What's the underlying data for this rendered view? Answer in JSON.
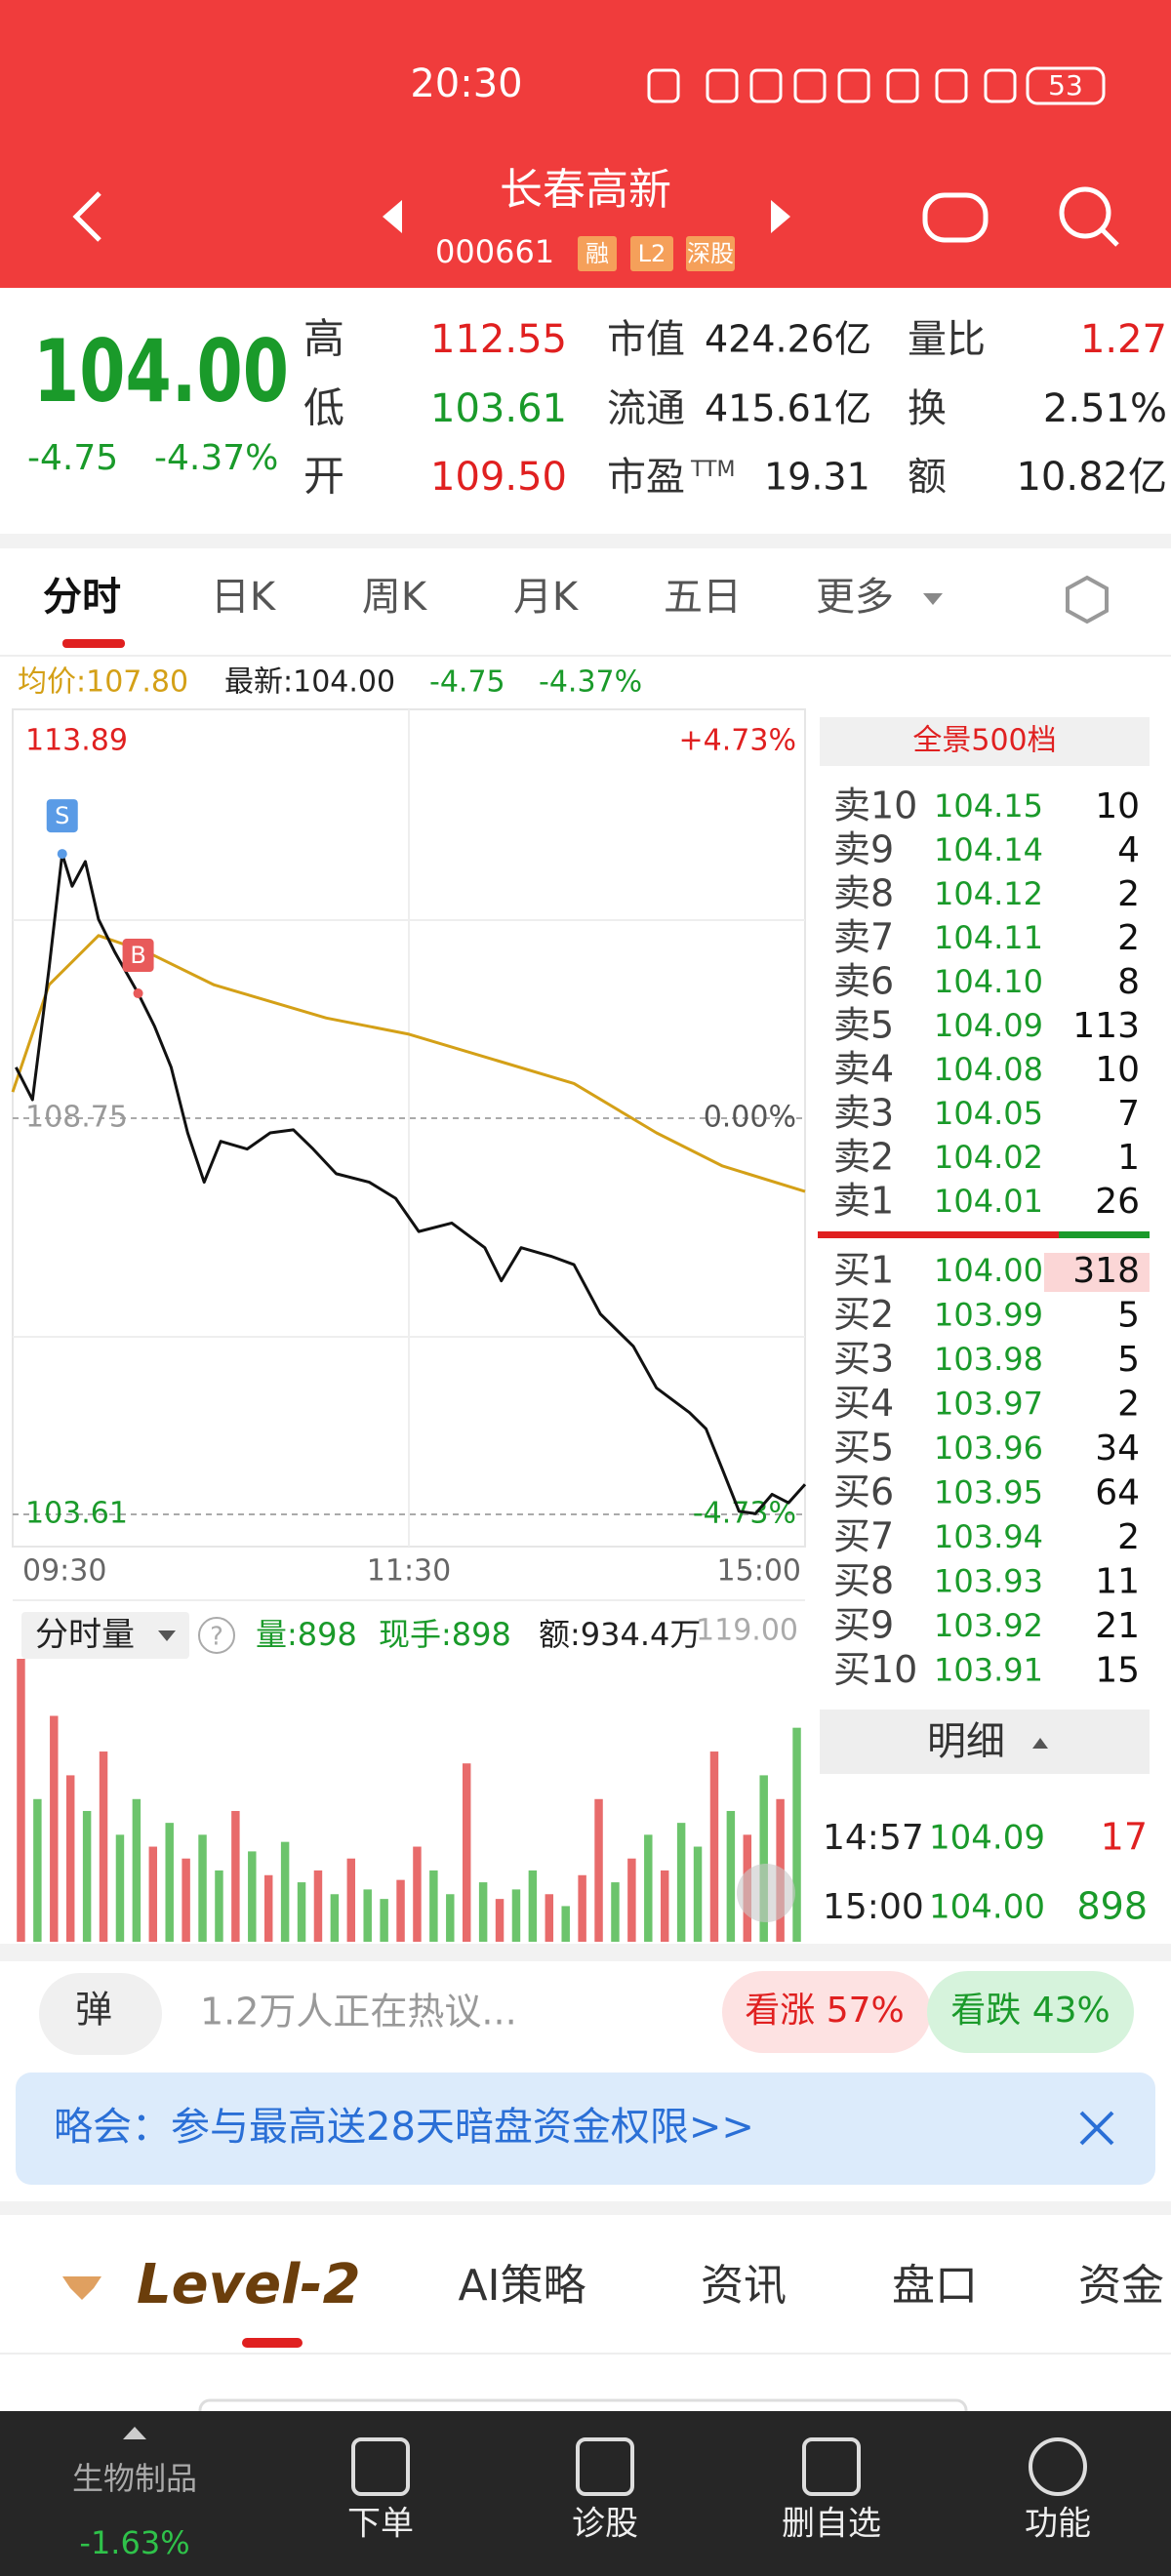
{
  "status_bar": {
    "time": "20:30",
    "battery": "53"
  },
  "header": {
    "title": "长春高新",
    "code": "000661",
    "tags": [
      "融",
      "L2",
      "深股"
    ]
  },
  "quote": {
    "price": "104.00",
    "change": "-4.75",
    "change_pct": "-4.37%",
    "pe_suffix": "TTM",
    "stats": [
      [
        "高",
        "112.55",
        "市值",
        "424.26亿",
        "量比",
        "1.27"
      ],
      [
        "低",
        "103.61",
        "流通",
        "415.61亿",
        "换",
        "2.51%"
      ],
      [
        "开",
        "109.50",
        "市盈",
        "19.31",
        "额",
        "10.82亿"
      ]
    ]
  },
  "tabs": [
    "分时",
    "日K",
    "周K",
    "月K",
    "五日",
    "更多"
  ],
  "info_bar": {
    "avg": "均价:107.80",
    "latest": "最新:104.00",
    "change": "-4.75",
    "change_pct": "-4.37%"
  },
  "intraday_chart": {
    "xlim": [
      0,
      240
    ],
    "xticks": [
      {
        "value": 0,
        "label": "09:30"
      },
      {
        "value": 120,
        "label": "11:30"
      },
      {
        "value": 240,
        "label": "15:00"
      }
    ],
    "ylim": [
      103.61,
      113.89
    ],
    "yticks": [
      113.89,
      108.75,
      103.61
    ],
    "y2lim": [
      -4.73,
      4.73
    ],
    "y2ticks": [
      {
        "value": 4.73,
        "label": "+4.73%"
      },
      {
        "value": 0,
        "label": "0.00%"
      },
      {
        "value": -4.73,
        "label": "-4.73%"
      }
    ],
    "price": {
      "x": [
        1,
        6,
        11,
        15,
        18,
        22,
        26,
        31,
        38,
        43,
        48,
        53,
        58,
        63,
        71,
        78,
        85,
        91,
        98,
        108,
        116,
        123,
        133,
        143,
        148,
        154,
        163,
        170,
        178,
        188,
        195,
        205,
        210,
        215,
        220,
        225,
        230,
        235,
        240
      ],
      "values": [
        109.41,
        108.99,
        110.69,
        112.18,
        111.76,
        112.08,
        111.33,
        110.9,
        110.37,
        109.94,
        109.41,
        108.56,
        107.92,
        108.45,
        108.35,
        108.56,
        108.6,
        108.35,
        108.03,
        107.92,
        107.71,
        107.28,
        107.39,
        107.07,
        106.64,
        107.07,
        106.96,
        106.85,
        106.21,
        105.79,
        105.25,
        104.93,
        104.72,
        104.19,
        103.65,
        103.62,
        103.87,
        103.76,
        104.0
      ]
    },
    "avg": {
      "x": [
        0,
        11,
        26,
        41,
        61,
        95,
        120,
        145,
        170,
        195,
        215,
        240
      ],
      "values": [
        109.09,
        110.48,
        111.12,
        110.9,
        110.48,
        110.05,
        109.84,
        109.52,
        109.2,
        108.56,
        108.13,
        107.8
      ]
    },
    "markers": [
      {
        "label": "S",
        "x": 15,
        "value": 112.18
      },
      {
        "label": "B",
        "x": 38,
        "value": 110.37
      }
    ]
  },
  "volume_panel": {
    "selector": "分时量",
    "help": "?",
    "volume": "量:898",
    "current": "现手:898",
    "amount": "额:934.4万",
    "ylim": [
      0,
      119
    ],
    "yticks": [
      {
        "value": 119,
        "label": "119.00"
      }
    ],
    "values": [
      119,
      60,
      95,
      70,
      55,
      80,
      45,
      60,
      40,
      50,
      35,
      45,
      30,
      55,
      38,
      28,
      42,
      25,
      30,
      20,
      35,
      22,
      18,
      26,
      40,
      30,
      20,
      75,
      25,
      18,
      22,
      30,
      20,
      15,
      28,
      60,
      25,
      35,
      45,
      30,
      50,
      40,
      80,
      55,
      45,
      70,
      60,
      90
    ],
    "up": [
      1,
      0,
      1,
      1,
      0,
      1,
      0,
      0,
      1,
      0,
      1,
      0,
      0,
      1,
      0,
      1,
      0,
      0,
      1,
      0,
      1,
      0,
      0,
      1,
      1,
      0,
      0,
      1,
      0,
      1,
      0,
      0,
      1,
      0,
      1,
      1,
      0,
      1,
      0,
      1,
      0,
      0,
      1,
      0,
      1,
      0,
      1,
      0
    ]
  },
  "order_book": {
    "title": "全景500档",
    "asks": [
      [
        "卖10",
        "104.15",
        "10"
      ],
      [
        "卖9",
        "104.14",
        "4"
      ],
      [
        "卖8",
        "104.12",
        "2"
      ],
      [
        "卖7",
        "104.11",
        "2"
      ],
      [
        "卖6",
        "104.10",
        "8"
      ],
      [
        "卖5",
        "104.09",
        "113"
      ],
      [
        "卖4",
        "104.08",
        "10"
      ],
      [
        "卖3",
        "104.05",
        "7"
      ],
      [
        "卖2",
        "104.02",
        "1"
      ],
      [
        "卖1",
        "104.01",
        "26"
      ]
    ],
    "bids": [
      [
        "买1",
        "104.00",
        "318"
      ],
      [
        "买2",
        "103.99",
        "5"
      ],
      [
        "买3",
        "103.98",
        "5"
      ],
      [
        "买4",
        "103.97",
        "2"
      ],
      [
        "买5",
        "103.96",
        "34"
      ],
      [
        "买6",
        "103.95",
        "64"
      ],
      [
        "买7",
        "103.94",
        "2"
      ],
      [
        "买8",
        "103.93",
        "11"
      ],
      [
        "买9",
        "103.92",
        "21"
      ],
      [
        "买10",
        "103.91",
        "15"
      ]
    ]
  },
  "trade_detail": {
    "title": "明细",
    "rows": [
      [
        "14:57",
        "104.09",
        "17"
      ],
      [
        "15:00",
        "104.00",
        "898"
      ]
    ]
  },
  "discussion": {
    "button": "弹",
    "text": "1.2万人正在热议...",
    "bull": "看涨 57%",
    "bear": "看跌 43%"
  },
  "banner": {
    "text": "略会：参与最高送28天暗盘资金权限>>"
  },
  "section_tabs": [
    "Level-2",
    "AI策略",
    "资讯",
    "盘口",
    "资金"
  ],
  "bottom_nav": {
    "sector": "生物制品",
    "sector_change": "-1.63%",
    "items": [
      "下单",
      "诊股",
      "删自选",
      "功能"
    ]
  }
}
